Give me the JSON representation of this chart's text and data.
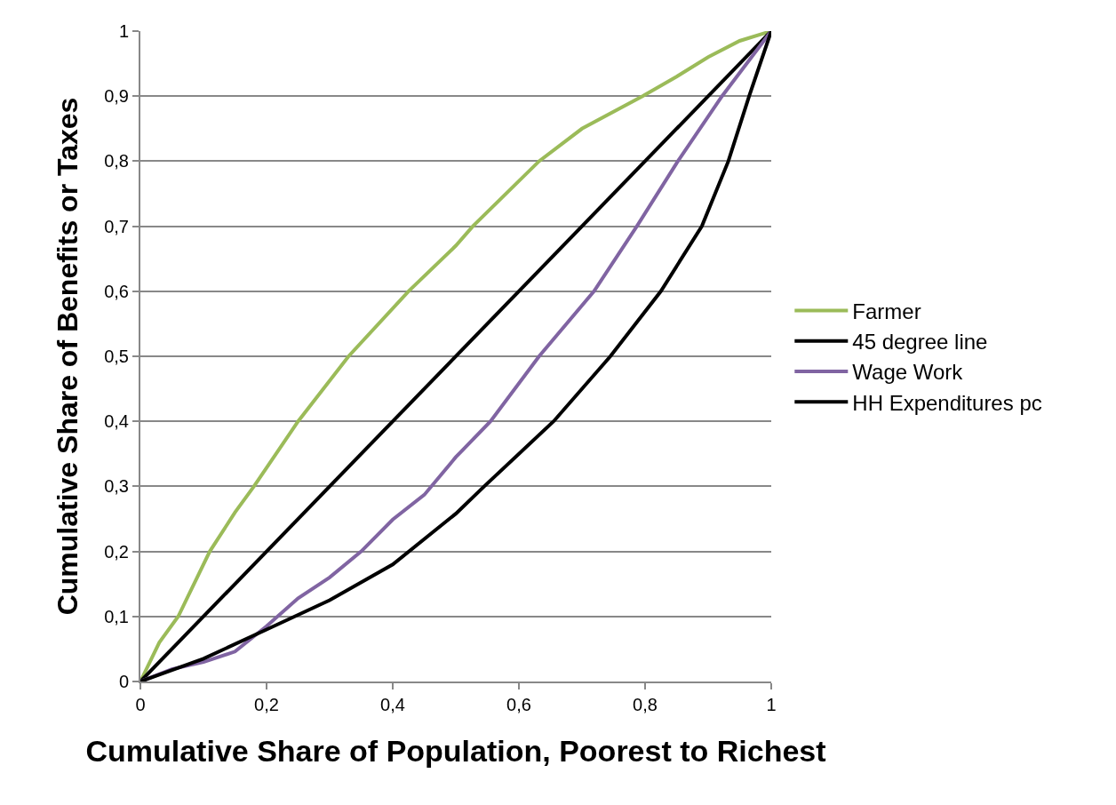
{
  "chart_data": {
    "type": "line",
    "xlabel": "Cumulative Share of Population, Poorest to Richest",
    "ylabel": "Cumulative Share of Benefits or Taxes",
    "xlim": [
      0,
      1
    ],
    "xticks": [
      0,
      {
        "value": 0.2,
        "label": "0,2"
      },
      {
        "value": 0.4,
        "label": "0,4"
      },
      {
        "value": 0.6,
        "label": "0,6"
      },
      {
        "value": 0.8,
        "label": "0,8"
      },
      1
    ],
    "ylim": [
      0,
      1
    ],
    "yticks": [
      0,
      {
        "value": 0.1,
        "label": "0,1"
      },
      {
        "value": 0.2,
        "label": "0,2"
      },
      {
        "value": 0.3,
        "label": "0,3"
      },
      {
        "value": 0.4,
        "label": "0,4"
      },
      {
        "value": 0.5,
        "label": "0,5"
      },
      {
        "value": 0.6,
        "label": "0,6"
      },
      {
        "value": 0.7,
        "label": "0,7"
      },
      {
        "value": 0.8,
        "label": "0,8"
      },
      {
        "value": 0.9,
        "label": "0,9"
      },
      1
    ],
    "grid": "y",
    "legend": "right",
    "marker": "none",
    "line_style": "solid",
    "series": [
      {
        "name": "Farmer",
        "color": "#9bbb59",
        "x": [
          0,
          0.03,
          0.06,
          0.11,
          0.15,
          0.18,
          0.25,
          0.33,
          0.425,
          0.5,
          0.527,
          0.632,
          0.7,
          0.796,
          0.85,
          0.9,
          0.95,
          1
        ],
        "values": [
          0,
          0.06,
          0.1,
          0.2,
          0.26,
          0.3,
          0.4,
          0.5,
          0.6,
          0.67,
          0.7,
          0.8,
          0.85,
          0.9,
          0.93,
          0.96,
          0.985,
          1
        ]
      },
      {
        "name": "45 degree line",
        "color": "#000000",
        "x": [
          0,
          1
        ],
        "values": [
          0,
          1
        ]
      },
      {
        "name": "Wage Work",
        "color": "#8064a2",
        "x": [
          0,
          0.05,
          0.1,
          0.15,
          0.2,
          0.25,
          0.3,
          0.35,
          0.4,
          0.45,
          0.5,
          0.555,
          0.632,
          0.719,
          0.787,
          0.852,
          0.922,
          1
        ],
        "values": [
          0,
          0.019,
          0.03,
          0.046,
          0.085,
          0.128,
          0.16,
          0.2,
          0.249,
          0.287,
          0.345,
          0.4,
          0.5,
          0.6,
          0.7,
          0.8,
          0.9,
          1
        ]
      },
      {
        "name": "HH Expenditures pc",
        "color": "#000000",
        "x": [
          0,
          0.1,
          0.2,
          0.3,
          0.4,
          0.5,
          0.545,
          0.655,
          0.745,
          0.825,
          0.89,
          0.932,
          0.965,
          1
        ],
        "values": [
          0,
          0.035,
          0.08,
          0.125,
          0.18,
          0.258,
          0.3,
          0.4,
          0.5,
          0.6,
          0.7,
          0.8,
          0.9,
          1
        ]
      }
    ]
  }
}
